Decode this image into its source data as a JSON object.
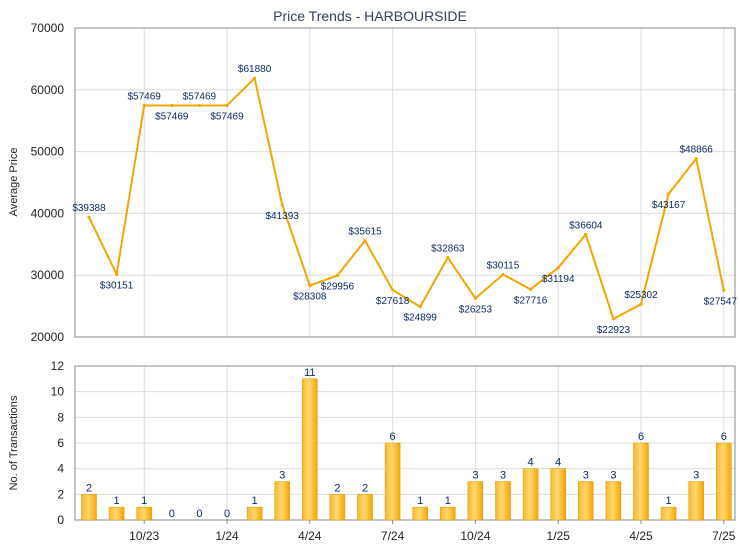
{
  "chart_data": [
    {
      "type": "line",
      "title": "Price Trends - HARBOURSIDE",
      "ylabel": "Average Price",
      "ylim": [
        20000,
        70000
      ],
      "yticks": [
        20000,
        30000,
        40000,
        50000,
        60000,
        70000
      ],
      "grid": true,
      "line_color": "#f5a500",
      "values": [
        39388,
        30151,
        57469,
        57469,
        57469,
        57469,
        61880,
        41393,
        28308,
        29956,
        35615,
        27618,
        24899,
        32863,
        26253,
        30115,
        27716,
        31194,
        36604,
        22923,
        25302,
        43167,
        48866,
        27547
      ],
      "labels": [
        "$39388",
        "$30151",
        "$57469",
        "$57469",
        "$57469",
        "$57469",
        "$61880",
        "$41393",
        "$28308",
        "$29956",
        "$35615",
        "$27618",
        "$24899",
        "$32863",
        "$26253",
        "$30115",
        "$27716",
        "$31194",
        "$36604",
        "$22923",
        "$25302",
        "$43167",
        "$48866",
        "$27547"
      ]
    },
    {
      "type": "bar",
      "ylabel": "No. of Transactions",
      "ylim": [
        0,
        12
      ],
      "yticks": [
        0,
        2,
        4,
        6,
        8,
        10,
        12
      ],
      "grid": true,
      "bar_color": "#f5a500",
      "x_tick_labels": [
        "10/23",
        "1/24",
        "4/24",
        "7/24",
        "10/24",
        "1/25",
        "4/25",
        "7/25"
      ],
      "values": [
        2,
        1,
        1,
        0,
        0,
        0,
        1,
        3,
        11,
        2,
        2,
        6,
        1,
        1,
        3,
        3,
        4,
        4,
        3,
        3,
        6,
        1,
        3,
        6
      ]
    }
  ]
}
